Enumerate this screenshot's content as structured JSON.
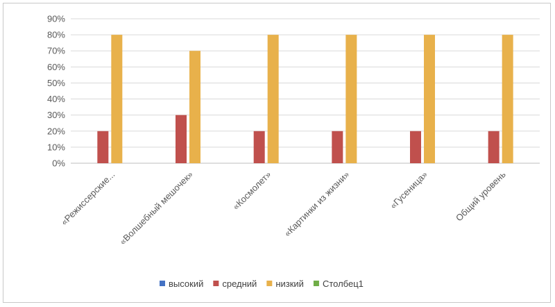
{
  "chart_data": {
    "type": "bar",
    "categories": [
      "«Режиссерские...",
      "«Волшебный мешочек»",
      "«Космолет»",
      "«Картинки из жизни»",
      "«Гусеница»",
      "Общий уровень"
    ],
    "series": [
      {
        "name": "высокий",
        "values": [
          0,
          0,
          0,
          0,
          0,
          0
        ],
        "color": "#4472C4"
      },
      {
        "name": "средний",
        "values": [
          20,
          30,
          20,
          20,
          20,
          20
        ],
        "color": "#C0504D"
      },
      {
        "name": "низкий",
        "values": [
          80,
          70,
          80,
          80,
          80,
          80
        ],
        "color": "#E8B14B"
      },
      {
        "name": "Столбец1",
        "values": [
          0,
          0,
          0,
          0,
          0,
          0
        ],
        "color": "#70AD47"
      }
    ],
    "ylim": [
      0,
      90
    ],
    "yticks": [
      "0%",
      "10%",
      "20%",
      "30%",
      "40%",
      "50%",
      "60%",
      "70%",
      "80%",
      "90%"
    ],
    "grid": true,
    "legend_position": "bottom"
  }
}
